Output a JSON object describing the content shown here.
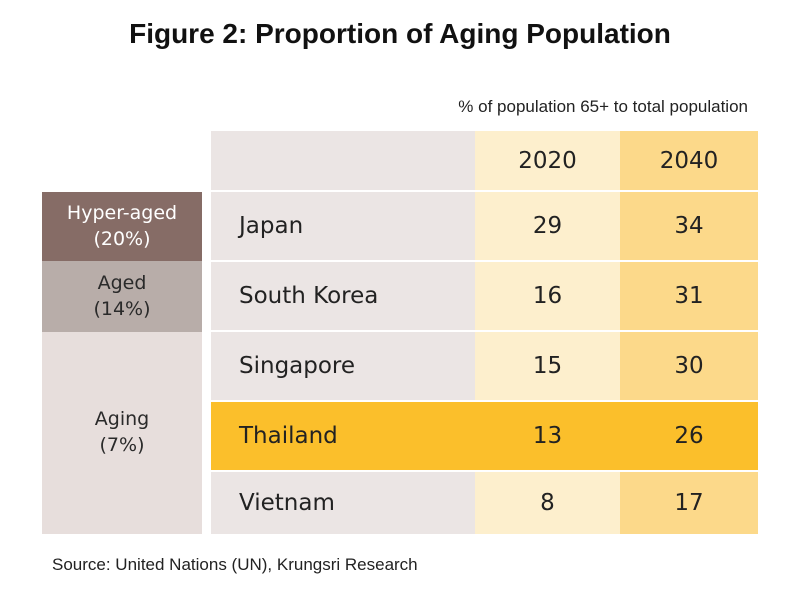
{
  "title": "Figure 2: Proportion of Aging Population",
  "units_note": "% of population 65+ to total population",
  "source": "Source: United Nations (UN), Krungsri Research",
  "bands": [
    {
      "label": "Hyper-aged",
      "threshold": "(20%)",
      "color": "#866c66"
    },
    {
      "label": "Aged",
      "threshold": "(14%)",
      "color": "#b8ada9"
    },
    {
      "label": "Aging",
      "threshold": "(7%)",
      "color": "#e7dedc"
    }
  ],
  "colors": {
    "country_col": "#ebe5e4",
    "col_2020": "#fdefcd",
    "col_2040": "#fcd98a",
    "highlight_row": "#fbbf2b"
  },
  "chart_data": {
    "type": "table",
    "title": "Figure 2: Proportion of Aging Population",
    "columns": [
      "2020",
      "2040"
    ],
    "rows": [
      {
        "country": "Japan",
        "2020": "29",
        "2040": "34"
      },
      {
        "country": "South Korea",
        "2020": "16",
        "2040": "31"
      },
      {
        "country": "Singapore",
        "2020": "15",
        "2040": "30"
      },
      {
        "country": "Thailand",
        "2020": "13",
        "2040": "26",
        "highlighted": true
      },
      {
        "country": "Vietnam",
        "2020": "8",
        "2040": "17"
      }
    ]
  }
}
